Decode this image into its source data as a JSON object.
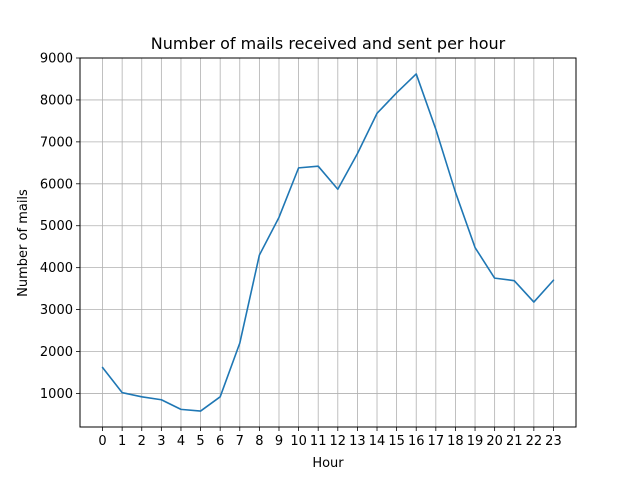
{
  "chart_data": {
    "type": "line",
    "title": "Number of mails received and sent per hour",
    "xlabel": "Hour",
    "ylabel": "Number of mails",
    "x": [
      0,
      1,
      2,
      3,
      4,
      5,
      6,
      7,
      8,
      9,
      10,
      11,
      12,
      13,
      14,
      15,
      16,
      17,
      18,
      19,
      20,
      21,
      22,
      23
    ],
    "series": [
      {
        "values": [
          1620,
          1020,
          920,
          850,
          620,
          580,
          920,
          2200,
          4300,
          5200,
          6380,
          6420,
          5870,
          6720,
          7680,
          8170,
          8620,
          7300,
          5800,
          4480,
          3750,
          3690,
          3180,
          3700
        ],
        "color": "#1f77b4"
      }
    ],
    "xlim": [
      -1.15,
      24.15
    ],
    "ylim": [
      200,
      9000
    ],
    "yticks": [
      1000,
      2000,
      3000,
      4000,
      5000,
      6000,
      7000,
      8000,
      9000
    ],
    "grid": true
  }
}
